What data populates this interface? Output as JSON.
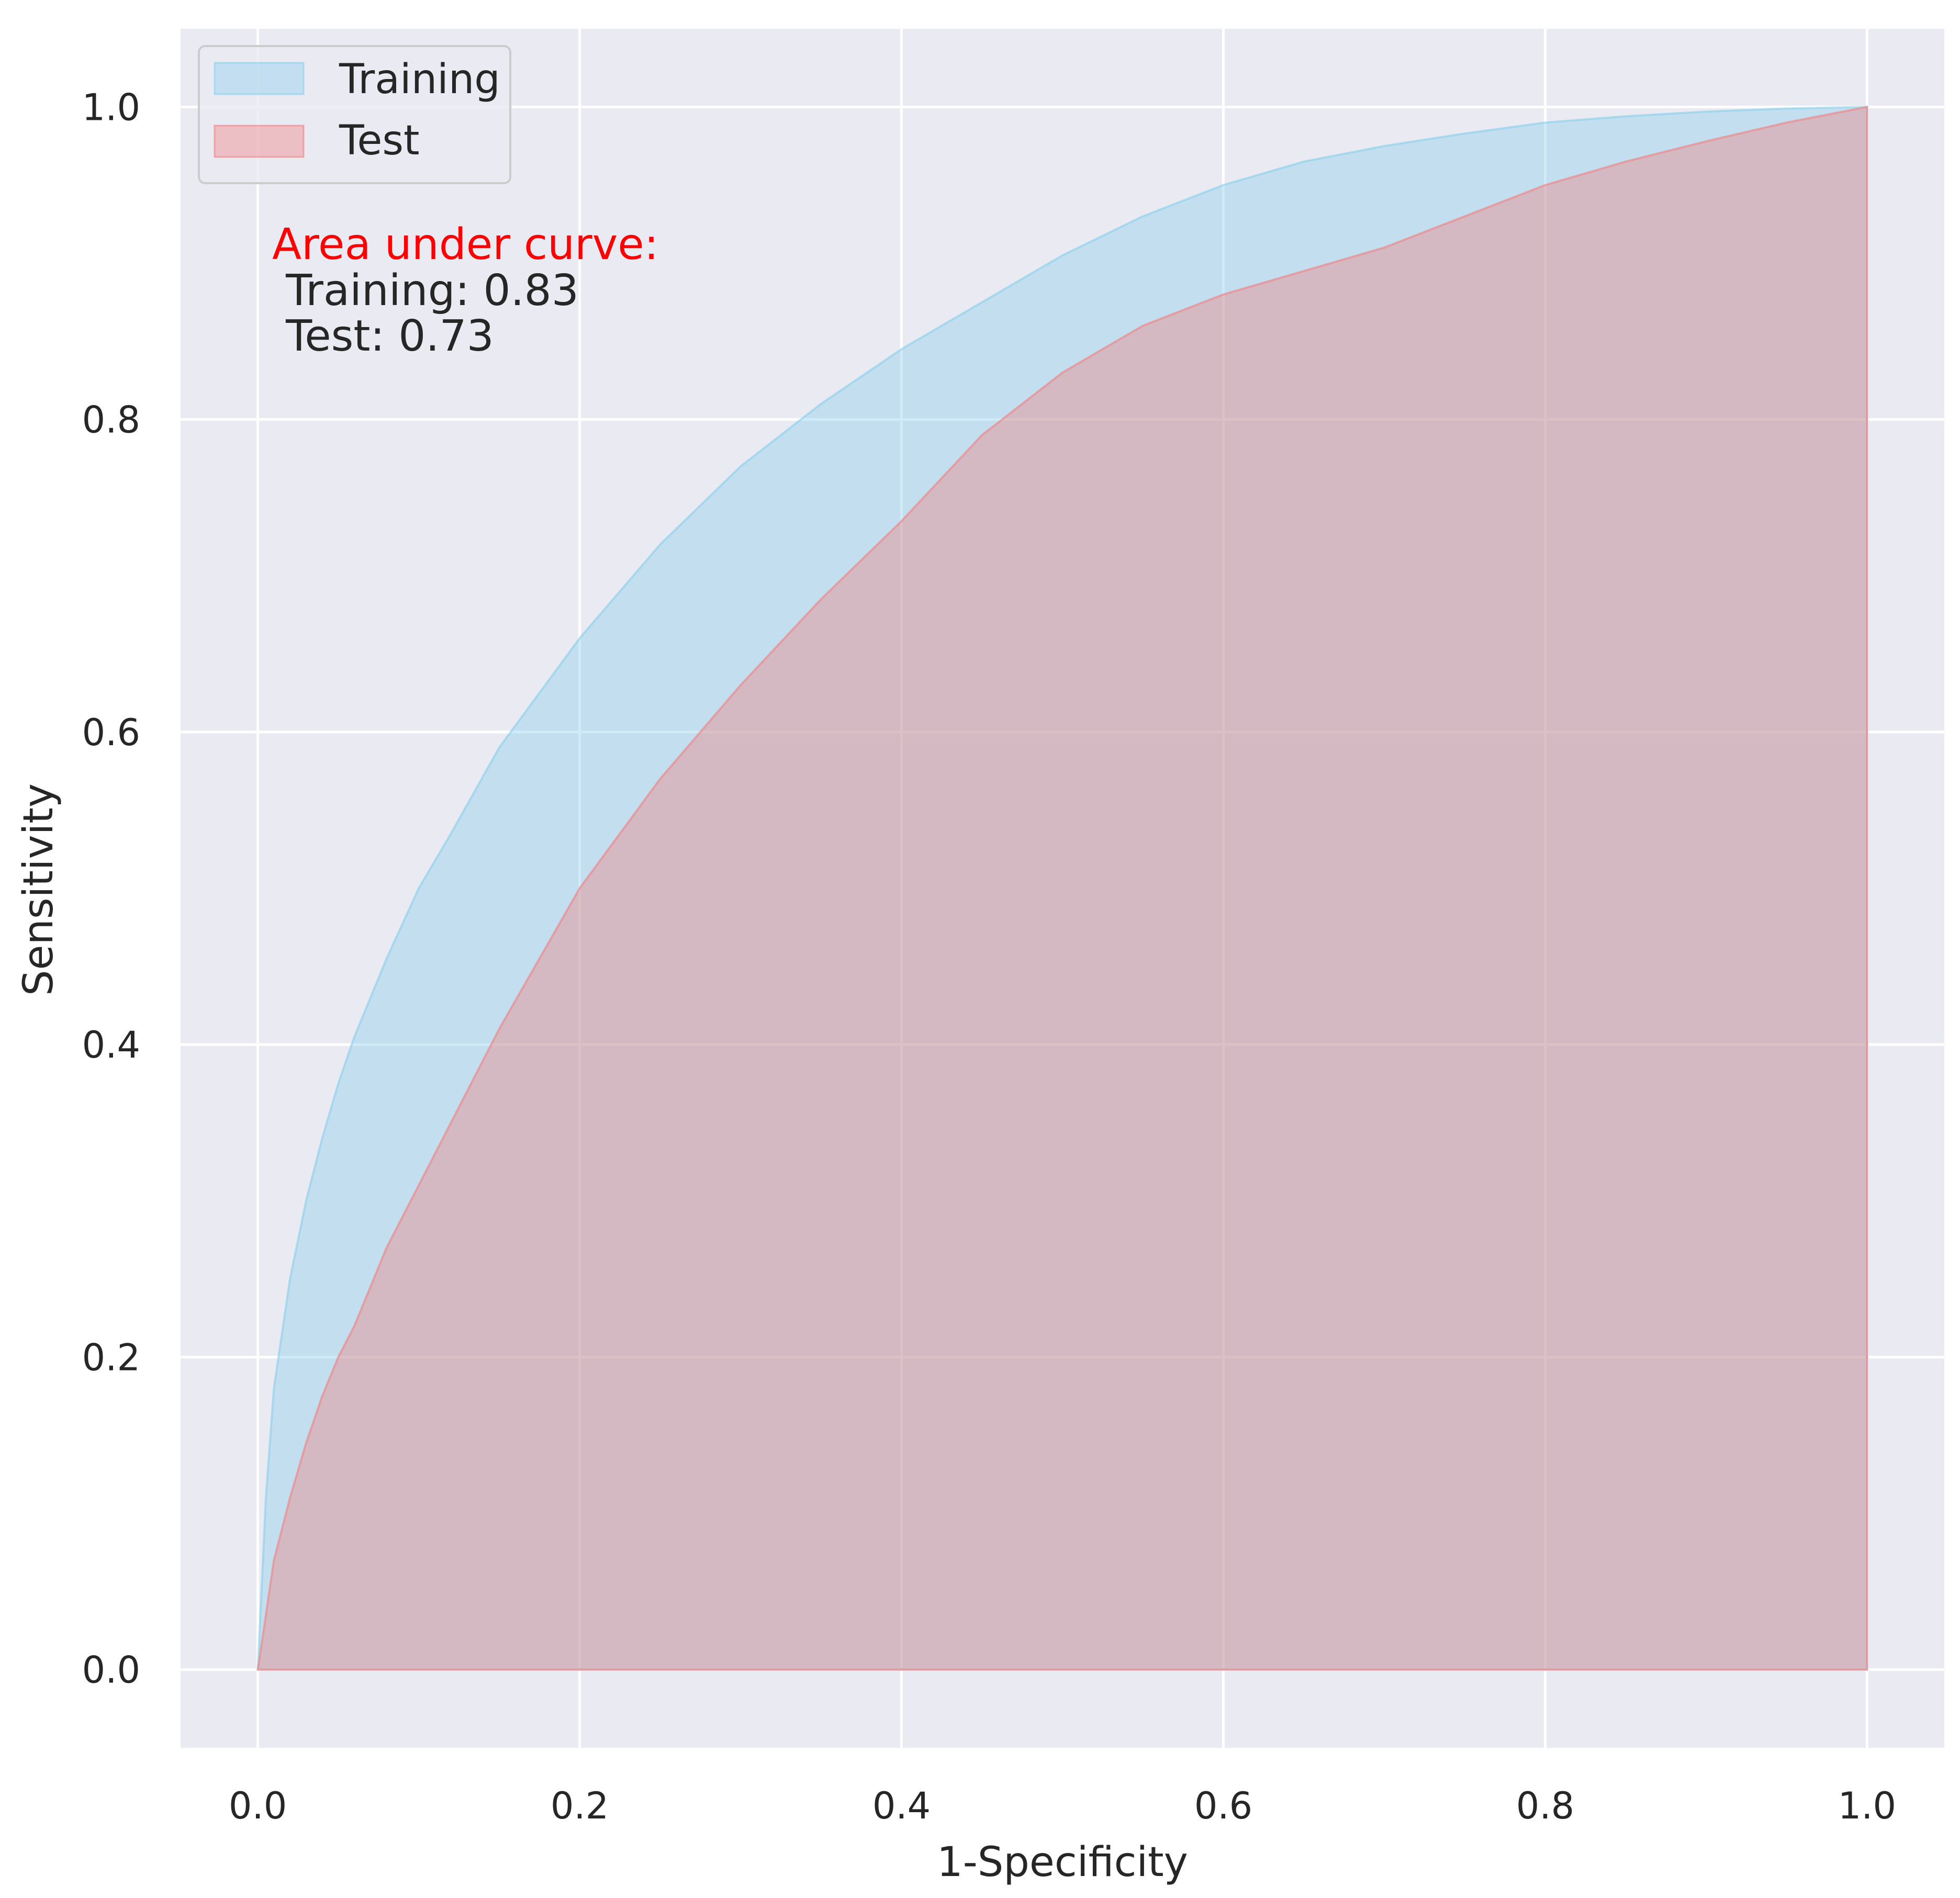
{
  "chart_data": {
    "type": "area",
    "xlabel": "1-Specificity",
    "ylabel": "Sensitivity",
    "xlim": [
      -0.048,
      1.048
    ],
    "ylim": [
      -0.05,
      1.05
    ],
    "xticks": [
      0.0,
      0.2,
      0.4,
      0.6,
      0.8,
      1.0
    ],
    "yticks": [
      0.0,
      0.2,
      0.4,
      0.6,
      0.8,
      1.0
    ],
    "xtick_labels": [
      "0.0",
      "0.2",
      "0.4",
      "0.6",
      "0.8",
      "1.0"
    ],
    "ytick_labels": [
      "0.0",
      "0.2",
      "0.4",
      "0.6",
      "0.8",
      "1.0"
    ],
    "grid": true,
    "legend_position": "top-left",
    "series": [
      {
        "name": "Training",
        "color": "#87ceeb",
        "x": [
          0.0,
          0.005,
          0.01,
          0.02,
          0.03,
          0.04,
          0.05,
          0.06,
          0.08,
          0.1,
          0.12,
          0.15,
          0.2,
          0.25,
          0.3,
          0.35,
          0.4,
          0.45,
          0.5,
          0.55,
          0.6,
          0.65,
          0.7,
          0.75,
          0.8,
          0.85,
          0.9,
          0.95,
          1.0
        ],
        "y": [
          0.0,
          0.11,
          0.18,
          0.25,
          0.3,
          0.34,
          0.375,
          0.405,
          0.455,
          0.5,
          0.535,
          0.59,
          0.66,
          0.72,
          0.77,
          0.81,
          0.845,
          0.875,
          0.905,
          0.93,
          0.95,
          0.965,
          0.975,
          0.983,
          0.99,
          0.994,
          0.997,
          0.999,
          1.0
        ]
      },
      {
        "name": "Test",
        "color": "#f08080",
        "x": [
          0.0,
          0.01,
          0.02,
          0.03,
          0.04,
          0.05,
          0.06,
          0.08,
          0.1,
          0.12,
          0.15,
          0.2,
          0.25,
          0.3,
          0.35,
          0.4,
          0.45,
          0.5,
          0.55,
          0.6,
          0.65,
          0.7,
          0.75,
          0.8,
          0.85,
          0.9,
          0.95,
          1.0
        ],
        "y": [
          0.0,
          0.07,
          0.11,
          0.145,
          0.175,
          0.2,
          0.22,
          0.27,
          0.31,
          0.35,
          0.41,
          0.5,
          0.57,
          0.63,
          0.685,
          0.735,
          0.79,
          0.83,
          0.86,
          0.88,
          0.895,
          0.91,
          0.93,
          0.95,
          0.965,
          0.978,
          0.99,
          1.0
        ]
      }
    ],
    "annotations": [
      {
        "text": "Area under curve:",
        "color": "#ff0000"
      },
      {
        "text": " Training: 0.83",
        "color": "#262626"
      },
      {
        "text": " Test: 0.73",
        "color": "#262626"
      }
    ]
  }
}
